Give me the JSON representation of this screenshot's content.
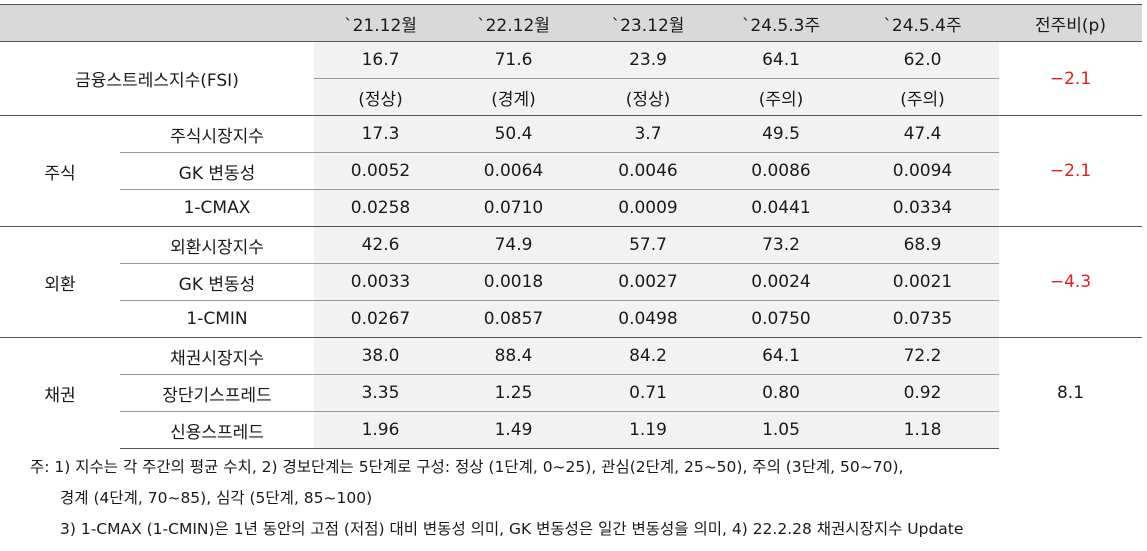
{
  "header": {
    "blank": "",
    "cols": [
      "`21.12월",
      "`22.12월",
      "`23.12월",
      "`24.5.3주",
      "`24.5.4주"
    ],
    "wow": "전주비(p)"
  },
  "fsi": {
    "label": "금융스트레스지수(FSI)",
    "values": [
      "16.7",
      "71.6",
      "23.9",
      "64.1",
      "62.0"
    ],
    "stages": [
      "(정상)",
      "(경계)",
      "(정상)",
      "(주의)",
      "(주의)"
    ],
    "wow": "−2.1"
  },
  "groups": [
    {
      "name": "주식",
      "wow": "−2.1",
      "wow_red": true,
      "rows": [
        {
          "label": "주식시장지수",
          "values": [
            "17.3",
            "50.4",
            "3.7",
            "49.5",
            "47.4"
          ]
        },
        {
          "label": "GK 변동성",
          "values": [
            "0.0052",
            "0.0064",
            "0.0046",
            "0.0086",
            "0.0094"
          ]
        },
        {
          "label": "1-CMAX",
          "values": [
            "0.0258",
            "0.0710",
            "0.0009",
            "0.0441",
            "0.0334"
          ]
        }
      ]
    },
    {
      "name": "외환",
      "wow": "−4.3",
      "wow_red": true,
      "rows": [
        {
          "label": "외환시장지수",
          "values": [
            "42.6",
            "74.9",
            "57.7",
            "73.2",
            "68.9"
          ]
        },
        {
          "label": "GK 변동성",
          "values": [
            "0.0033",
            "0.0018",
            "0.0027",
            "0.0024",
            "0.0021"
          ]
        },
        {
          "label": "1-CMIN",
          "values": [
            "0.0267",
            "0.0857",
            "0.0498",
            "0.0750",
            "0.0735"
          ]
        }
      ]
    },
    {
      "name": "채권",
      "wow": "8.1",
      "wow_red": false,
      "rows": [
        {
          "label": "채권시장지수",
          "values": [
            "38.0",
            "88.4",
            "84.2",
            "64.1",
            "72.2"
          ]
        },
        {
          "label": "장단기스프레드",
          "values": [
            "3.35",
            "1.25",
            "0.71",
            "0.80",
            "0.92"
          ]
        },
        {
          "label": "신용스프레드",
          "values": [
            "1.96",
            "1.49",
            "1.19",
            "1.05",
            "1.18"
          ]
        }
      ]
    }
  ],
  "notes": [
    "주: 1) 지수는 각 주간의 평균 수치, 2) 경보단계는 5단계로 구성: 정상 (1단계, 0~25), 관심(2단계, 25~50), 주의 (3단계, 50~70),",
    "경계 (4단계, 70~85), 심각 (5단계, 85~100)",
    "3) 1-CMAX (1-CMIN)은 1년 동안의 고점 (저점) 대비 변동성 의미, GK 변동성은 일간 변동성을 의미, 4) 22.2.28 채권시장지수 Update"
  ],
  "colors": {
    "header_bg": "#d9d9d9",
    "value_bg": "#f2f2f2",
    "negative": "#e02020"
  }
}
